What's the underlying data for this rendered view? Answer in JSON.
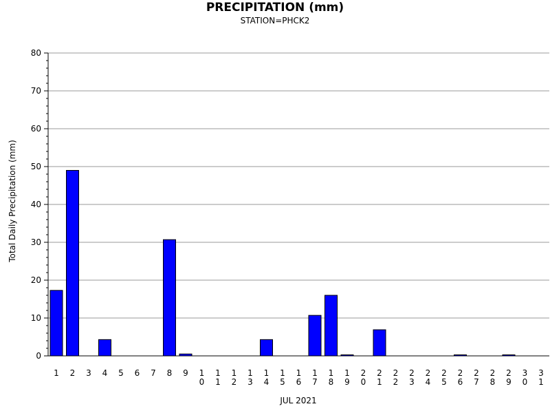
{
  "chart_data": {
    "type": "bar",
    "title": "PRECIPITATION (mm)",
    "subtitle": "STATION=PHCK2",
    "xlabel": "JUL 2021",
    "ylabel": "Total Daily Precipitation (mm)",
    "ylim": [
      0,
      80
    ],
    "yticks": [
      0,
      10,
      20,
      30,
      40,
      50,
      60,
      70,
      80
    ],
    "grid": true,
    "categories": [
      "1",
      "2",
      "3",
      "4",
      "5",
      "6",
      "7",
      "8",
      "9",
      "10",
      "11",
      "12",
      "13",
      "14",
      "15",
      "16",
      "17",
      "18",
      "19",
      "20",
      "21",
      "22",
      "23",
      "24",
      "25",
      "26",
      "27",
      "28",
      "29",
      "30",
      "31"
    ],
    "values": [
      17.3,
      49.0,
      0,
      4.3,
      0,
      0,
      0,
      30.7,
      0.5,
      0,
      0,
      0,
      0,
      4.3,
      0,
      0,
      10.7,
      16.0,
      0.2,
      0,
      6.9,
      0,
      0,
      0,
      0,
      0.2,
      0,
      0,
      0.2,
      0,
      0
    ],
    "bar_color": "#0000ff",
    "bar_edge_color": "#000000"
  }
}
